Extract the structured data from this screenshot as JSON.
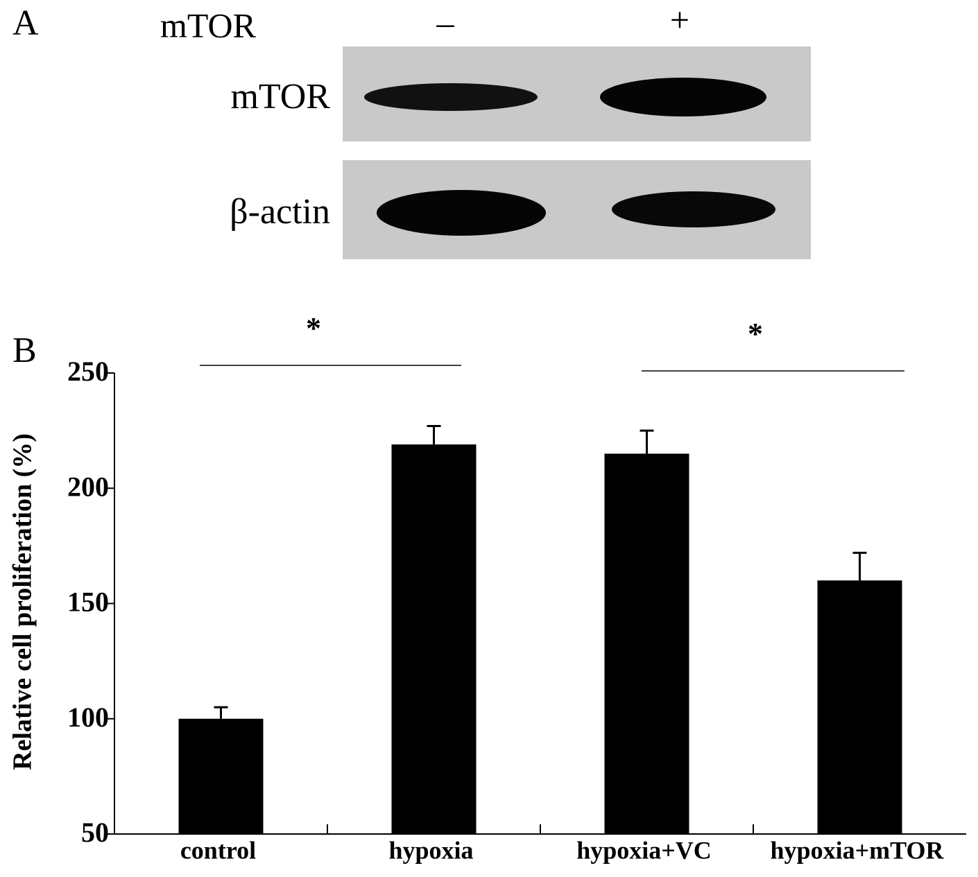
{
  "panel_a": {
    "label": "A",
    "header_label": "mTOR",
    "lanes": [
      "–",
      "+"
    ],
    "rows": [
      "mTOR",
      "β-actin"
    ]
  },
  "chart_data": {
    "type": "bar",
    "panel_label": "B",
    "y_label": "Relative cell proliferation (%)",
    "categories": [
      "control",
      "hypoxia",
      "hypoxia+VC",
      "hypoxia+mTOR"
    ],
    "values": [
      100,
      219,
      215,
      160
    ],
    "errors": [
      5,
      8,
      10,
      12
    ],
    "color": "#000000",
    "ylim": [
      50,
      250
    ],
    "yticks": [
      50,
      100,
      150,
      200,
      250
    ],
    "annotations": [
      "*",
      "*"
    ]
  }
}
